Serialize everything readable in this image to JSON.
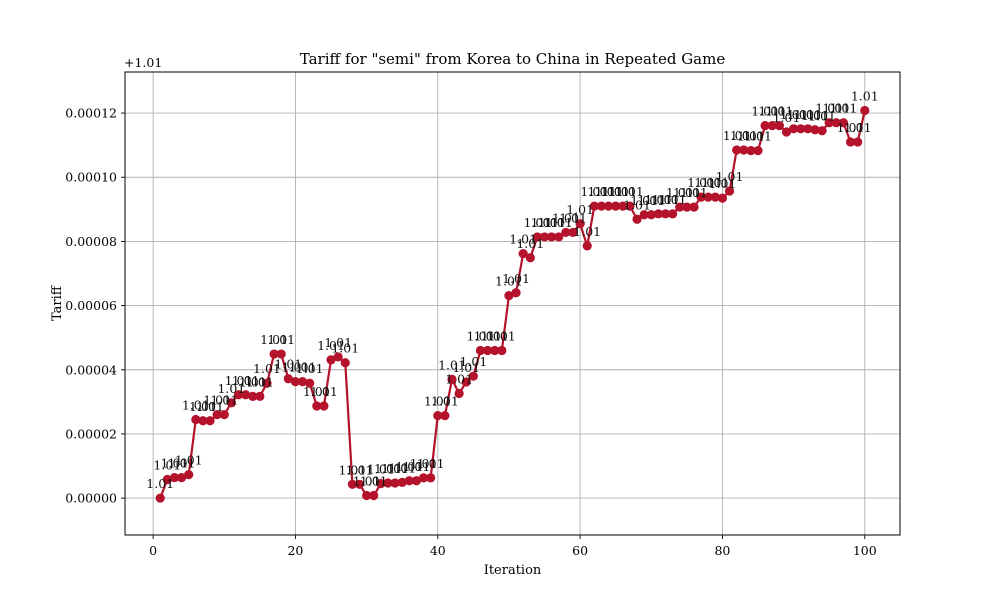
{
  "chart_data": {
    "type": "line",
    "title": "Tariff for \"semi\" from Korea to China in Repeated Game",
    "xlabel": "Iteration",
    "ylabel": "Tariff",
    "y_offset_label": "+1.01",
    "xlim": [
      -3.95,
      104.95
    ],
    "ylim": [
      -1.15e-05,
      0.0001328
    ],
    "x_ticks": [
      0,
      20,
      40,
      60,
      80,
      100
    ],
    "y_ticks": [
      0,
      2e-05,
      4e-05,
      6e-05,
      8e-05,
      0.0001,
      0.00012
    ],
    "y_tick_labels": [
      "0.00000",
      "0.00002",
      "0.00004",
      "0.00006",
      "0.00008",
      "0.00010",
      "0.00012"
    ],
    "grid": true,
    "line_color": "#b5122b",
    "point_label_text": "1.01",
    "series": [
      {
        "x": [
          1,
          2,
          3,
          4,
          5,
          6,
          7,
          8,
          9,
          10,
          11,
          12,
          13,
          14,
          15,
          16,
          17,
          18,
          19,
          20,
          21,
          22,
          23,
          24,
          25,
          26,
          27,
          28,
          29,
          30,
          31,
          32,
          33,
          34,
          35,
          36,
          37,
          38,
          39,
          40,
          41,
          42,
          43,
          44,
          45,
          46,
          47,
          48,
          49,
          50,
          51,
          52,
          53,
          54,
          55,
          56,
          57,
          58,
          59,
          60,
          61,
          62,
          63,
          64,
          65,
          66,
          67,
          68,
          69,
          70,
          71,
          72,
          73,
          74,
          75,
          76,
          77,
          78,
          79,
          80,
          81,
          82,
          83,
          84,
          85,
          86,
          87,
          88,
          89,
          90,
          91,
          92,
          93,
          94,
          95,
          96,
          97,
          98,
          99,
          100
        ],
        "values": [
          0,
          5.8e-06,
          6.4e-06,
          6.4e-06,
          7.3e-06,
          2.45e-05,
          2.41e-05,
          2.41e-05,
          2.6e-05,
          2.6e-05,
          2.97e-05,
          3.22e-05,
          3.22e-05,
          3.17e-05,
          3.17e-05,
          3.58e-05,
          4.49e-05,
          4.49e-05,
          3.72e-05,
          3.63e-05,
          3.63e-05,
          3.58e-05,
          2.87e-05,
          2.87e-05,
          4.31e-05,
          4.4e-05,
          4.22e-05,
          4.3e-06,
          4.3e-06,
          8e-07,
          8e-07,
          4.5e-06,
          4.7e-06,
          4.7e-06,
          4.9e-06,
          5.4e-06,
          5.4e-06,
          6.3e-06,
          6.3e-06,
          2.57e-05,
          2.57e-05,
          3.7e-05,
          3.26e-05,
          3.62e-05,
          3.8e-05,
          4.6e-05,
          4.6e-05,
          4.6e-05,
          4.6e-05,
          6.31e-05,
          6.4e-05,
          7.62e-05,
          7.49e-05,
          8.14e-05,
          8.14e-05,
          8.14e-05,
          8.14e-05,
          8.28e-05,
          8.28e-05,
          8.55e-05,
          7.86e-05,
          9.1e-05,
          9.1e-05,
          9.1e-05,
          9.1e-05,
          9.1e-05,
          9.1e-05,
          8.69e-05,
          8.83e-05,
          8.83e-05,
          8.86e-05,
          8.86e-05,
          8.86e-05,
          9.07e-05,
          9.07e-05,
          9.07e-05,
          9.38e-05,
          9.38e-05,
          9.38e-05,
          9.35e-05,
          9.57e-05,
          0.0001085,
          0.0001085,
          0.0001083,
          0.0001083,
          0.0001161,
          0.0001161,
          0.0001161,
          0.0001141,
          0.0001151,
          0.0001151,
          0.0001151,
          0.0001148,
          0.0001145,
          0.000117,
          0.000117,
          0.000117,
          0.000111,
          0.000111,
          0.0001208
        ]
      }
    ]
  }
}
